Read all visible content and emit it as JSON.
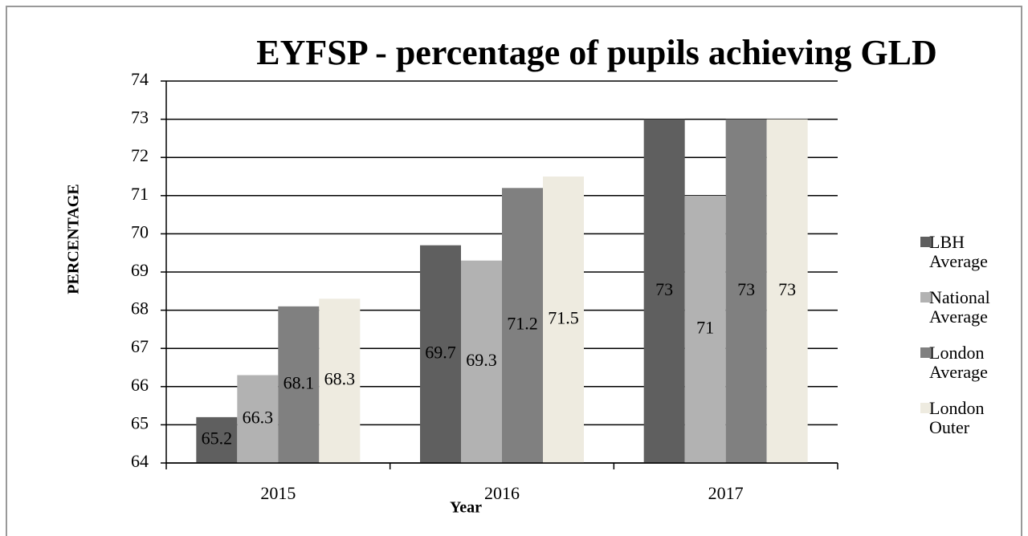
{
  "chart_data": {
    "type": "bar",
    "title": "EYFSP - percentage of pupils achieving GLD",
    "x_label": "Year",
    "y_label": "PERCENTAGE",
    "categories": [
      "2015",
      "2016",
      "2017"
    ],
    "series": [
      {
        "name": "LBH Average",
        "color": "#5f5f5f",
        "values": [
          65.2,
          69.7,
          73
        ]
      },
      {
        "name": "National Average",
        "color": "#b2b2b2",
        "values": [
          66.3,
          69.3,
          71
        ]
      },
      {
        "name": "London Average",
        "color": "#808080",
        "values": [
          68.1,
          71.2,
          73
        ]
      },
      {
        "name": "London Outer",
        "color": "#eeebe0",
        "values": [
          68.3,
          71.5,
          73
        ]
      }
    ],
    "ylim": [
      64,
      74
    ],
    "yticks": [
      64,
      65,
      66,
      67,
      68,
      69,
      70,
      71,
      72,
      73,
      74
    ],
    "grid": true,
    "legend": "right"
  }
}
